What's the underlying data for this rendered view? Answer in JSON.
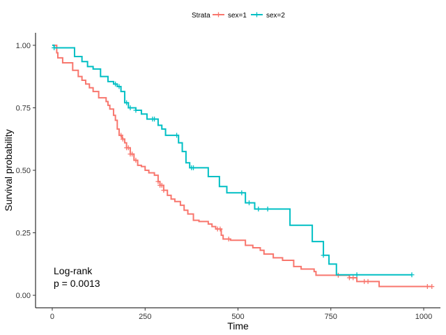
{
  "chart_data": {
    "type": "line",
    "subtype": "kaplan-meier",
    "xlabel": "Time",
    "ylabel": "Survival probability",
    "xlim": [
      -45,
      1045
    ],
    "ylim": [
      -0.05,
      1.05
    ],
    "x_ticks": [
      0,
      250,
      500,
      750,
      1000
    ],
    "y_ticks": [
      0.0,
      0.25,
      0.5,
      0.75,
      1.0
    ],
    "y_tick_labels": [
      "0.00",
      "0.25",
      "0.50",
      "0.75",
      "1.00"
    ],
    "grid": false,
    "legend": {
      "title": "Strata",
      "position": "top",
      "entries": [
        "sex=1",
        "sex=2"
      ]
    },
    "annotation": {
      "line1": "Log-rank",
      "line2": "p = 0.0013"
    },
    "series": [
      {
        "name": "sex=1",
        "color": "#F8766D",
        "steps": [
          [
            0,
            1.0
          ],
          [
            12,
            0.97
          ],
          [
            15,
            0.95
          ],
          [
            28,
            0.93
          ],
          [
            55,
            0.9
          ],
          [
            70,
            0.875
          ],
          [
            80,
            0.86
          ],
          [
            90,
            0.845
          ],
          [
            100,
            0.83
          ],
          [
            110,
            0.815
          ],
          [
            125,
            0.79
          ],
          [
            145,
            0.775
          ],
          [
            150,
            0.76
          ],
          [
            155,
            0.745
          ],
          [
            165,
            0.72
          ],
          [
            170,
            0.7
          ],
          [
            175,
            0.665
          ],
          [
            180,
            0.64
          ],
          [
            188,
            0.625
          ],
          [
            195,
            0.61
          ],
          [
            200,
            0.59
          ],
          [
            210,
            0.565
          ],
          [
            220,
            0.54
          ],
          [
            230,
            0.52
          ],
          [
            240,
            0.515
          ],
          [
            250,
            0.5
          ],
          [
            260,
            0.49
          ],
          [
            275,
            0.48
          ],
          [
            285,
            0.455
          ],
          [
            290,
            0.44
          ],
          [
            300,
            0.42
          ],
          [
            310,
            0.4
          ],
          [
            320,
            0.385
          ],
          [
            330,
            0.375
          ],
          [
            345,
            0.36
          ],
          [
            355,
            0.34
          ],
          [
            365,
            0.325
          ],
          [
            380,
            0.3
          ],
          [
            395,
            0.295
          ],
          [
            420,
            0.285
          ],
          [
            430,
            0.275
          ],
          [
            440,
            0.265
          ],
          [
            455,
            0.24
          ],
          [
            460,
            0.225
          ],
          [
            480,
            0.22
          ],
          [
            520,
            0.2
          ],
          [
            540,
            0.19
          ],
          [
            560,
            0.18
          ],
          [
            570,
            0.165
          ],
          [
            595,
            0.15
          ],
          [
            620,
            0.14
          ],
          [
            650,
            0.115
          ],
          [
            670,
            0.105
          ],
          [
            705,
            0.095
          ],
          [
            710,
            0.08
          ],
          [
            800,
            0.07
          ],
          [
            820,
            0.055
          ],
          [
            880,
            0.035
          ],
          [
            1022,
            0.035
          ]
        ],
        "censor_times": [
          185,
          190,
          200,
          205,
          210,
          215,
          225,
          285,
          290,
          295,
          300,
          445,
          452,
          475,
          770,
          800,
          810,
          840,
          850,
          1010,
          1022
        ]
      },
      {
        "name": "sex=2",
        "color": "#00BFC4",
        "steps": [
          [
            0,
            1.0
          ],
          [
            5,
            0.99
          ],
          [
            60,
            0.955
          ],
          [
            80,
            0.935
          ],
          [
            95,
            0.915
          ],
          [
            110,
            0.905
          ],
          [
            130,
            0.875
          ],
          [
            150,
            0.855
          ],
          [
            165,
            0.845
          ],
          [
            175,
            0.835
          ],
          [
            185,
            0.815
          ],
          [
            195,
            0.77
          ],
          [
            205,
            0.75
          ],
          [
            225,
            0.74
          ],
          [
            240,
            0.725
          ],
          [
            255,
            0.705
          ],
          [
            285,
            0.68
          ],
          [
            295,
            0.665
          ],
          [
            305,
            0.64
          ],
          [
            340,
            0.61
          ],
          [
            350,
            0.575
          ],
          [
            360,
            0.53
          ],
          [
            370,
            0.51
          ],
          [
            420,
            0.475
          ],
          [
            450,
            0.435
          ],
          [
            470,
            0.41
          ],
          [
            520,
            0.37
          ],
          [
            545,
            0.345
          ],
          [
            640,
            0.28
          ],
          [
            700,
            0.215
          ],
          [
            730,
            0.16
          ],
          [
            745,
            0.125
          ],
          [
            765,
            0.082
          ],
          [
            968,
            0.082
          ]
        ],
        "censor_times": [
          5,
          170,
          180,
          200,
          210,
          225,
          270,
          275,
          335,
          375,
          380,
          510,
          530,
          555,
          580,
          730,
          820,
          968
        ]
      }
    ]
  }
}
